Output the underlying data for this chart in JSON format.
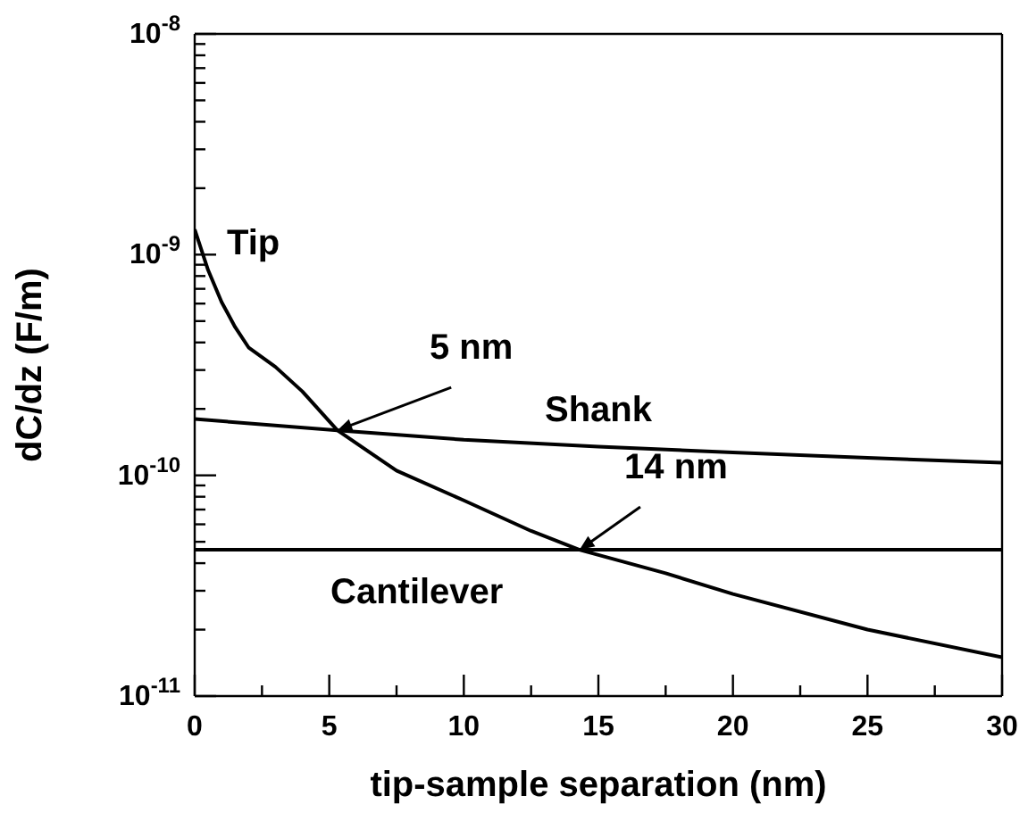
{
  "chart_data": {
    "type": "line",
    "xlabel": "tip-sample separation (nm)",
    "ylabel": "dC/dz (F/m)",
    "log": "y",
    "grid": false,
    "marker": "none",
    "line_style": "solid",
    "xlim": [
      0,
      30
    ],
    "ylim": [
      1e-11,
      1e-08
    ],
    "xticks": [
      0,
      {
        "value": 2.5,
        "label": null
      },
      5,
      {
        "value": 7.5,
        "label": null
      },
      10,
      {
        "value": 12.5,
        "label": null
      },
      15,
      {
        "value": 17.5,
        "label": null
      },
      20,
      {
        "value": 22.5,
        "label": null
      },
      25,
      {
        "value": 27.5,
        "label": null
      },
      30
    ],
    "yticks": [
      {
        "value": 1e-11,
        "label": "10$^{-11}$"
      },
      {
        "value": 2e-11,
        "label": null
      },
      {
        "value": 3e-11,
        "label": null
      },
      {
        "value": 4e-11,
        "label": null
      },
      {
        "value": 5e-11,
        "label": null
      },
      {
        "value": 6e-11,
        "label": null
      },
      {
        "value": 7e-11,
        "label": null
      },
      {
        "value": 8e-11,
        "label": null
      },
      {
        "value": 9e-11,
        "label": null
      },
      {
        "value": 1e-10,
        "label": "10$^{-10}$"
      },
      {
        "value": 2e-10,
        "label": null
      },
      {
        "value": 3e-10,
        "label": null
      },
      {
        "value": 4e-10,
        "label": null
      },
      {
        "value": 5e-10,
        "label": null
      },
      {
        "value": 6e-10,
        "label": null
      },
      {
        "value": 7e-10,
        "label": null
      },
      {
        "value": 8e-10,
        "label": null
      },
      {
        "value": 9e-10,
        "label": null
      },
      {
        "value": 1e-09,
        "label": "10$^{-9}$"
      },
      {
        "value": 2e-09,
        "label": null
      },
      {
        "value": 3e-09,
        "label": null
      },
      {
        "value": 4e-09,
        "label": null
      },
      {
        "value": 5e-09,
        "label": null
      },
      {
        "value": 6e-09,
        "label": null
      },
      {
        "value": 7e-09,
        "label": null
      },
      {
        "value": 8e-09,
        "label": null
      },
      {
        "value": 9e-09,
        "label": null
      },
      {
        "value": 1e-08,
        "label": "10$^{-8}$"
      }
    ],
    "series": [
      {
        "name": "Tip",
        "color": "#000000",
        "x": [
          0,
          0.5,
          1,
          1.5,
          2,
          3,
          4,
          5.3,
          7.5,
          10,
          12.5,
          14.3,
          17.5,
          20,
          25,
          30
        ],
        "values": [
          1.3e-09,
          8.5e-10,
          6.1e-10,
          4.7e-10,
          3.8e-10,
          3.1e-10,
          2.4e-10,
          1.6e-10,
          1.05e-10,
          7.7e-11,
          5.6e-11,
          4.6e-11,
          3.6e-11,
          2.9e-11,
          2e-11,
          1.5e-11
        ]
      },
      {
        "name": "Shank",
        "color": "#000000",
        "x": [
          0,
          5.3,
          10,
          15,
          20,
          25,
          30
        ],
        "values": [
          1.8e-10,
          1.6e-10,
          1.45e-10,
          1.35e-10,
          1.27e-10,
          1.2e-10,
          1.14e-10
        ]
      },
      {
        "name": "Cantilever",
        "color": "#000000",
        "x": [
          0,
          30
        ],
        "values": [
          4.6e-11,
          4.6e-11
        ]
      }
    ],
    "annotations": [
      {
        "text": "5 nm",
        "x": 5.3,
        "y": 1.6e-10
      },
      {
        "text": "14 nm",
        "x": 14.3,
        "y": 4.6e-11
      }
    ]
  }
}
